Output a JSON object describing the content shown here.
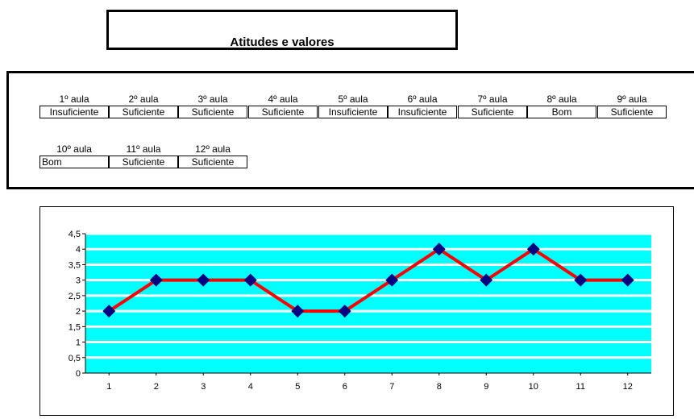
{
  "header": {
    "title": "Atitudes e valores"
  },
  "grades": [
    {
      "label": "1º aula",
      "value": "Insuficiente"
    },
    {
      "label": "2º aula",
      "value": "Suficiente"
    },
    {
      "label": "3º aula",
      "value": "Suficiente"
    },
    {
      "label": "4º aula",
      "value": "Suficiente"
    },
    {
      "label": "5º aula",
      "value": "Insuficiente"
    },
    {
      "label": "6º aula",
      "value": "Insuficiente"
    },
    {
      "label": "7º aula",
      "value": "Suficiente"
    },
    {
      "label": "8º aula",
      "value": "Bom"
    },
    {
      "label": "9º aula",
      "value": "Suficiente"
    },
    {
      "label": "10º aula",
      "value": "Bom"
    },
    {
      "label": "11º aula",
      "value": "Suficiente"
    },
    {
      "label": "12º aula",
      "value": "Suficiente"
    }
  ],
  "chart_data": {
    "type": "line",
    "x": [
      1,
      2,
      3,
      4,
      5,
      6,
      7,
      8,
      9,
      10,
      11,
      12
    ],
    "categories": [
      "1",
      "2",
      "3",
      "4",
      "5",
      "6",
      "7",
      "8",
      "9",
      "10",
      "11",
      "12"
    ],
    "values": [
      2,
      3,
      3,
      3,
      2,
      2,
      3,
      4,
      3,
      4,
      3,
      3
    ],
    "ylim": [
      0,
      4.5
    ],
    "yticks": [
      0,
      0.5,
      1,
      1.5,
      2,
      2.5,
      3,
      3.5,
      4,
      4.5
    ],
    "ytick_labels": [
      "0",
      "0,5",
      "1",
      "1,5",
      "2",
      "2,5",
      "3",
      "3,5",
      "4",
      "4,5"
    ],
    "grid": true,
    "legend": "none",
    "colors": {
      "line": "#ff0000",
      "marker": "#000080",
      "plot_background": "#00ffff",
      "gridline": "#ffffff"
    }
  }
}
